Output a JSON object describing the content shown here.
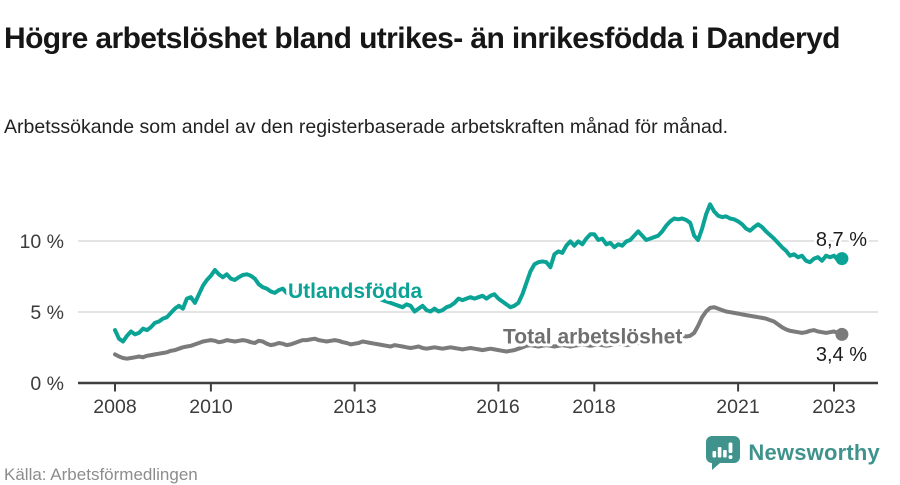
{
  "header": {
    "title": "Högre arbetslöshet bland utrikes- än inrikesfödda i Danderyd",
    "subtitle": "Arbetssökande som andel av den registerbaserade arbetskraften månad för månad."
  },
  "footer": {
    "source": "Källa: Arbetsförmedlingen",
    "logo_text": "Newsworthy"
  },
  "colors": {
    "series_utlandsfodda": "#0aa396",
    "series_total": "#7b7b7b",
    "series_total_label": "#6f6f6f",
    "grid": "#dcdcdc",
    "axis": "#3f3f3f",
    "logo_teal": "#3f938c"
  },
  "chart_data": {
    "type": "line",
    "title": "Högre arbetslöshet bland utrikes- än inrikesfödda i Danderyd",
    "subtitle": "Arbetssökande som andel av den registerbaserade arbetskraften månad för månad.",
    "x_start_year": 2008,
    "x_step_months": 1,
    "x_ticks": [
      2008,
      2010,
      2013,
      2016,
      2018,
      2021,
      2023
    ],
    "x_tick_labels": [
      "2008",
      "2010",
      "2013",
      "2016",
      "2018",
      "2021",
      "2023"
    ],
    "y_ticks": [
      0,
      5,
      10
    ],
    "y_tick_labels": [
      "0 %",
      "5 %",
      "10 %"
    ],
    "ylim": [
      0,
      13.2
    ],
    "xlim": [
      2007.2,
      2023.9
    ],
    "grid": "horizontal",
    "legend_position": "inline-labels",
    "series": [
      {
        "id": "utlandsfodda",
        "name": "Utlandsfödda",
        "color": "#0aa396",
        "end_label": "8,7 %",
        "end_value": 8.7,
        "values": [
          3.7,
          3.1,
          2.9,
          3.3,
          3.6,
          3.4,
          3.5,
          3.8,
          3.7,
          3.9,
          4.2,
          4.3,
          4.5,
          4.6,
          4.9,
          5.2,
          5.4,
          5.2,
          5.9,
          6.0,
          5.6,
          6.2,
          6.8,
          7.2,
          7.5,
          7.9,
          7.6,
          7.4,
          7.6,
          7.3,
          7.2,
          7.4,
          7.55,
          7.6,
          7.5,
          7.3,
          6.9,
          6.7,
          6.6,
          6.4,
          6.3,
          6.5,
          6.6,
          6.3,
          6.1,
          6.3,
          6.4,
          6.5,
          6.4,
          6.5,
          6.6,
          6.4,
          6.3,
          6.4,
          6.5,
          6.4,
          6.3,
          6.4,
          6.3,
          6.2,
          6.3,
          6.2,
          6.1,
          6.0,
          6.1,
          6.0,
          5.9,
          5.8,
          5.7,
          5.6,
          5.5,
          5.4,
          5.3,
          5.5,
          5.4,
          5.0,
          5.2,
          5.4,
          5.1,
          5.0,
          5.2,
          5.0,
          5.1,
          5.3,
          5.4,
          5.6,
          5.9,
          5.8,
          5.9,
          6.0,
          5.9,
          6.0,
          6.1,
          5.9,
          6.1,
          6.2,
          5.9,
          5.7,
          5.5,
          5.3,
          5.4,
          5.6,
          6.2,
          7.0,
          7.8,
          8.3,
          8.45,
          8.5,
          8.45,
          8.1,
          9.0,
          9.2,
          9.1,
          9.6,
          9.9,
          9.6,
          9.9,
          9.7,
          10.1,
          10.4,
          10.4,
          10.0,
          10.1,
          9.7,
          9.8,
          9.5,
          9.7,
          9.6,
          9.9,
          10.0,
          10.3,
          10.6,
          10.3,
          10.0,
          10.1,
          10.2,
          10.3,
          10.6,
          11.0,
          11.3,
          11.5,
          11.45,
          11.5,
          11.4,
          11.2,
          10.3,
          10.0,
          10.8,
          11.8,
          12.5,
          12.0,
          11.7,
          11.6,
          11.65,
          11.5,
          11.45,
          11.3,
          11.1,
          10.8,
          10.65,
          10.9,
          11.1,
          10.9,
          10.6,
          10.35,
          10.1,
          9.8,
          9.5,
          9.25,
          8.9,
          9.0,
          8.8,
          8.9,
          8.55,
          8.45,
          8.7,
          8.8,
          8.55,
          8.9,
          8.8,
          8.9,
          8.6,
          8.7
        ]
      },
      {
        "id": "total",
        "name": "Total arbetslöshet",
        "color": "#7b7b7b",
        "end_label": "3,4 %",
        "end_value": 3.4,
        "values": [
          2.0,
          1.85,
          1.75,
          1.7,
          1.75,
          1.8,
          1.85,
          1.8,
          1.9,
          1.95,
          2.0,
          2.05,
          2.1,
          2.15,
          2.25,
          2.3,
          2.4,
          2.5,
          2.55,
          2.6,
          2.7,
          2.8,
          2.9,
          2.95,
          3.0,
          2.95,
          2.85,
          2.9,
          3.0,
          2.95,
          2.9,
          2.95,
          3.0,
          2.95,
          2.85,
          2.8,
          2.95,
          2.9,
          2.75,
          2.65,
          2.7,
          2.8,
          2.75,
          2.65,
          2.7,
          2.8,
          2.9,
          3.0,
          3.0,
          3.05,
          3.1,
          3.0,
          2.95,
          2.9,
          2.95,
          3.0,
          2.95,
          2.85,
          2.8,
          2.7,
          2.75,
          2.8,
          2.9,
          2.85,
          2.8,
          2.75,
          2.7,
          2.65,
          2.6,
          2.55,
          2.65,
          2.6,
          2.55,
          2.5,
          2.45,
          2.5,
          2.55,
          2.45,
          2.4,
          2.45,
          2.5,
          2.45,
          2.4,
          2.45,
          2.5,
          2.45,
          2.4,
          2.35,
          2.4,
          2.45,
          2.4,
          2.35,
          2.3,
          2.35,
          2.4,
          2.35,
          2.3,
          2.25,
          2.2,
          2.25,
          2.3,
          2.4,
          2.5,
          2.6,
          2.65,
          2.6,
          2.55,
          2.6,
          2.65,
          2.6,
          2.55,
          2.6,
          2.65,
          2.6,
          2.55,
          2.6,
          2.65,
          2.7,
          2.65,
          2.6,
          2.65,
          2.7,
          2.65,
          2.6,
          2.65,
          2.7,
          2.75,
          2.7,
          2.65,
          2.7,
          2.75,
          2.8,
          2.85,
          2.9,
          2.95,
          3.0,
          3.05,
          3.1,
          3.15,
          3.2,
          3.25,
          3.3,
          3.3,
          3.25,
          3.3,
          3.5,
          4.0,
          4.6,
          5.0,
          5.25,
          5.3,
          5.2,
          5.1,
          5.0,
          4.95,
          4.9,
          4.85,
          4.8,
          4.75,
          4.7,
          4.65,
          4.6,
          4.55,
          4.5,
          4.4,
          4.3,
          4.1,
          3.9,
          3.75,
          3.65,
          3.6,
          3.55,
          3.5,
          3.55,
          3.65,
          3.7,
          3.6,
          3.55,
          3.5,
          3.55,
          3.6,
          3.5,
          3.4
        ]
      }
    ]
  }
}
